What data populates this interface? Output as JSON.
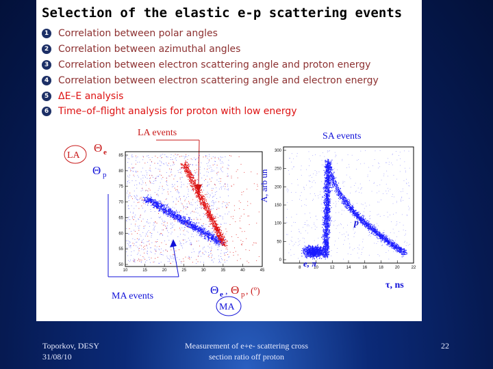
{
  "title": "Selection of the elastic e-p scattering events",
  "items": [
    {
      "num": "1",
      "text": "Correlation between polar angles"
    },
    {
      "num": "2",
      "text": "Correlation between azimuthal angles"
    },
    {
      "num": "3",
      "text": "Correlation between electron scattering angle and proton energy"
    },
    {
      "num": "4",
      "text": "Correlation between electron scattering angle and electron energy"
    },
    {
      "num": "5",
      "text": "ΔE–E analysis"
    },
    {
      "num": "6",
      "text": "Time–of–flight analysis for proton with low energy"
    }
  ],
  "figure": {
    "left_plot": {
      "title": "LA events",
      "tag_la": "LA",
      "theta_e": "Θ",
      "theta_e_sub": "e",
      "theta_p": "Θ",
      "theta_p_sub": "p",
      "y_ticks": [
        "85",
        "80",
        "75",
        "70",
        "65",
        "60",
        "55",
        "50"
      ],
      "x_ticks": [
        "10",
        "15",
        "20",
        "25",
        "30",
        "35",
        "40",
        "45"
      ],
      "xlabel_theta_e": "Θ",
      "xlabel_e_sub": "e",
      "xlabel_sep": ",",
      "xlabel_theta_p": "Θ",
      "xlabel_p_sub": "p",
      "xlabel_unit": ", (º)",
      "ma_caption": "MA events",
      "tag_ma": "MA"
    },
    "right_plot": {
      "title": "SA events",
      "ylabel": "A, arb un",
      "y_ticks": [
        "300",
        "250",
        "200",
        "150",
        "100",
        "50",
        "0"
      ],
      "x_ticks": [
        "8",
        "10",
        "12",
        "14",
        "16",
        "18",
        "20",
        "22"
      ],
      "xlabel": "τ, ns",
      "label_p": "p",
      "label_epi": "e, π"
    }
  },
  "footer": {
    "left_line1": "Toporkov, DESY",
    "left_line2": "31/08/10",
    "center_line1": "Measurement of e+e- scattering cross",
    "center_line2": "section ratio off proton",
    "page": "22"
  }
}
